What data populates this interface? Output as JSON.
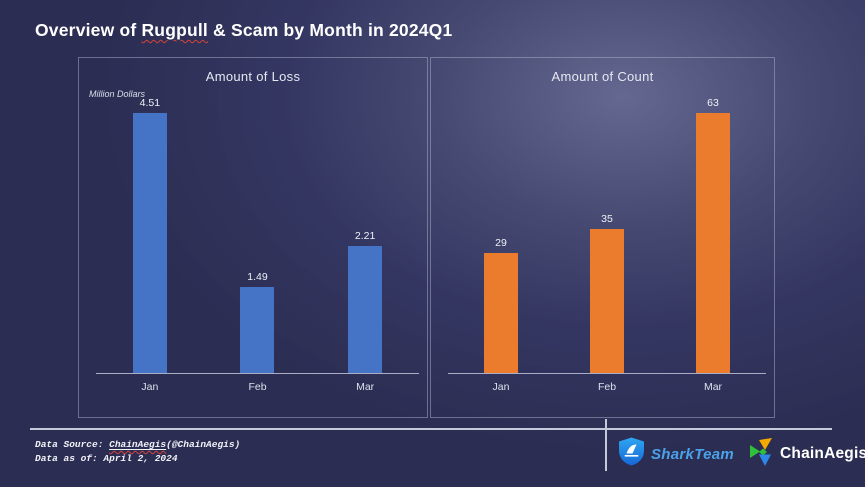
{
  "title": {
    "part1": "Overview of ",
    "highlight": "Rugpull",
    "part2": " & Scam by Month in 2024Q1"
  },
  "chart_data": [
    {
      "type": "bar",
      "title": "Amount of Loss",
      "ylabel": "Million Dollars",
      "categories": [
        "Jan",
        "Feb",
        "Mar"
      ],
      "values": [
        4.51,
        1.49,
        2.21
      ],
      "value_labels": [
        "4.51",
        "1.49",
        "2.21"
      ],
      "bar_color": "#4573C6",
      "ylim": [
        0,
        4.6
      ],
      "grid": false,
      "legend": false
    },
    {
      "type": "bar",
      "title": "Amount of Count",
      "ylabel": "",
      "categories": [
        "Jan",
        "Feb",
        "Mar"
      ],
      "values": [
        29,
        35,
        63
      ],
      "value_labels": [
        "29",
        "35",
        "63"
      ],
      "bar_color": "#EC7C2D",
      "ylim": [
        0,
        64
      ],
      "grid": false,
      "legend": false
    }
  ],
  "footer": {
    "source_prefix": "Data Source: ",
    "source_link": "ChainAegis",
    "source_suffix": "(@ChainAegis)",
    "as_of": "Data as of: April 2, 2024",
    "sharkteam_label": "SharkTeam",
    "chainaegis_label": "ChainAegis"
  },
  "colors": {
    "background": "#2b2d52",
    "bar_blue": "#4573C6",
    "bar_orange": "#EC7C2D",
    "axis": "#a9aec6",
    "divider": "#c6c9d9",
    "sharkteam_blue": "#4ba2e8",
    "squiggle_red": "#d84339"
  }
}
